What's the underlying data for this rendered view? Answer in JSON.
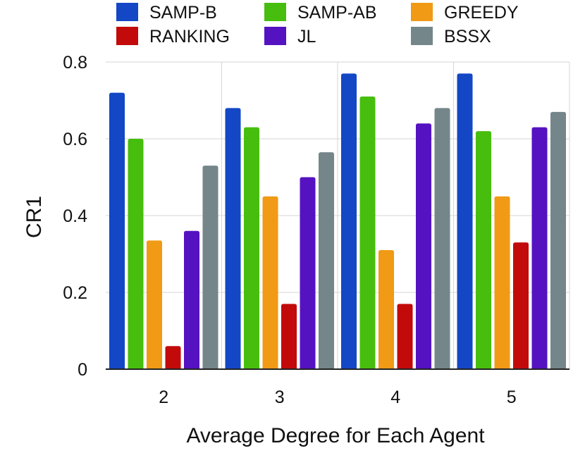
{
  "chart_data": {
    "type": "bar",
    "xlabel": "Average Degree for Each Agent",
    "ylabel": "CR1",
    "ylim": [
      0,
      0.8
    ],
    "yticks": [
      "0",
      "0.2",
      "0.4",
      "0.6",
      "0.8"
    ],
    "grid": true,
    "legend_position": "top",
    "categories": [
      "2",
      "3",
      "4",
      "5"
    ],
    "series": [
      {
        "name": "SAMP-B",
        "color": "#1347c6",
        "values": [
          0.72,
          0.68,
          0.77,
          0.77
        ]
      },
      {
        "name": "SAMP-AB",
        "color": "#47be0e",
        "values": [
          0.6,
          0.63,
          0.71,
          0.62
        ]
      },
      {
        "name": "GREEDY",
        "color": "#f09a15",
        "values": [
          0.335,
          0.45,
          0.31,
          0.45
        ]
      },
      {
        "name": "RANKING",
        "color": "#c20a0a",
        "values": [
          0.06,
          0.17,
          0.17,
          0.33
        ]
      },
      {
        "name": "JL",
        "color": "#5512c1",
        "values": [
          0.36,
          0.5,
          0.64,
          0.63
        ]
      },
      {
        "name": "BSSX",
        "color": "#74868a",
        "values": [
          0.53,
          0.565,
          0.68,
          0.67
        ]
      }
    ],
    "legend_order": [
      "SAMP-B",
      "SAMP-AB",
      "GREEDY",
      "RANKING",
      "JL",
      "BSSX"
    ]
  }
}
